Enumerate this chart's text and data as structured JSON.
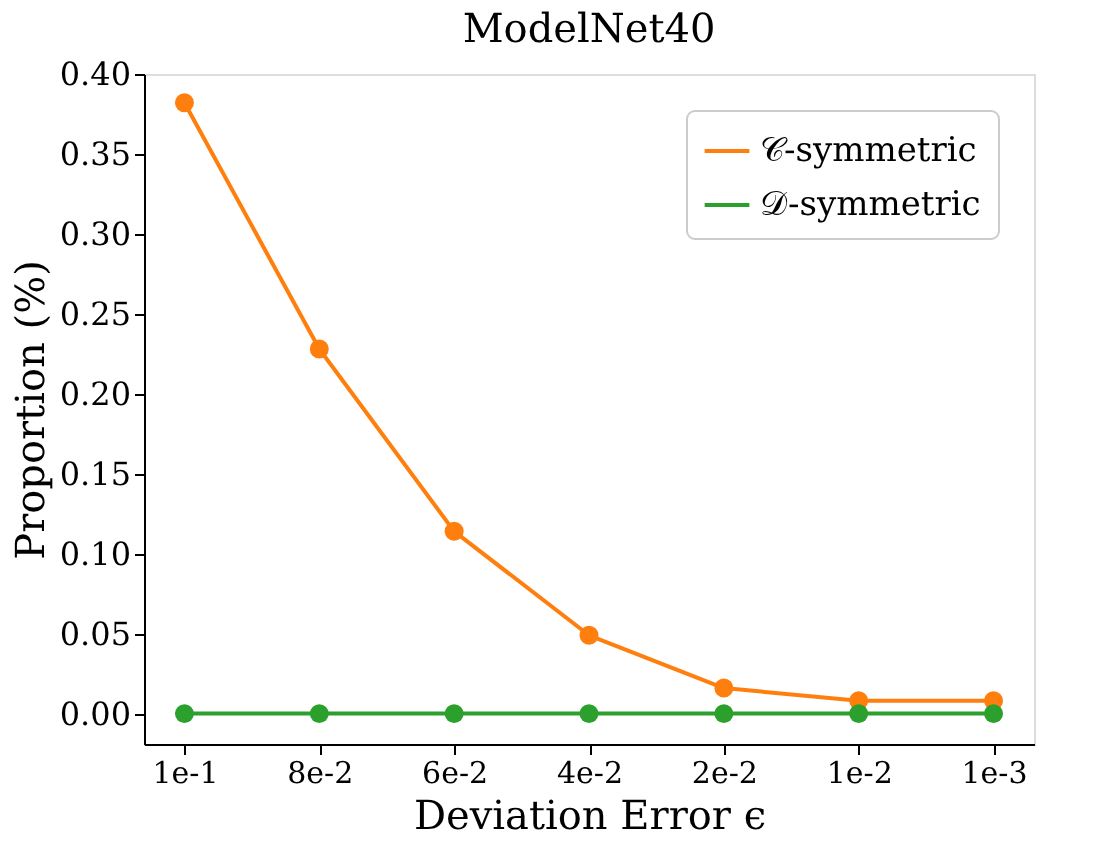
{
  "chart_data": {
    "type": "line",
    "title": "ModelNet40",
    "xlabel": "Deviation Error ϵ",
    "ylabel": "Proportion (%)",
    "categories": [
      "1e-1",
      "8e-2",
      "6e-2",
      "4e-2",
      "2e-2",
      "1e-2",
      "1e-3"
    ],
    "series": [
      {
        "name": "𝒞-symmetric",
        "color": "#ff7f0e",
        "values": [
          0.382,
          0.228,
          0.114,
          0.049,
          0.016,
          0.008,
          0.008
        ]
      },
      {
        "name": "𝒟-symmetric",
        "color": "#2ca02c",
        "values": [
          0,
          0,
          0,
          0,
          0,
          0,
          0
        ]
      }
    ],
    "ylim": [
      -0.019,
      0.4
    ],
    "yticks": [
      {
        "value": 0,
        "label": "0.00"
      },
      0.05,
      {
        "value": 0.1,
        "label": "0.10"
      },
      0.15,
      {
        "value": 0.2,
        "label": "0.20"
      },
      0.25,
      {
        "value": 0.3,
        "label": "0.30"
      },
      0.35,
      {
        "value": 0.4,
        "label": "0.40"
      }
    ],
    "grid": false,
    "legend": "top right",
    "marker": "circle",
    "line_style": "solid"
  }
}
